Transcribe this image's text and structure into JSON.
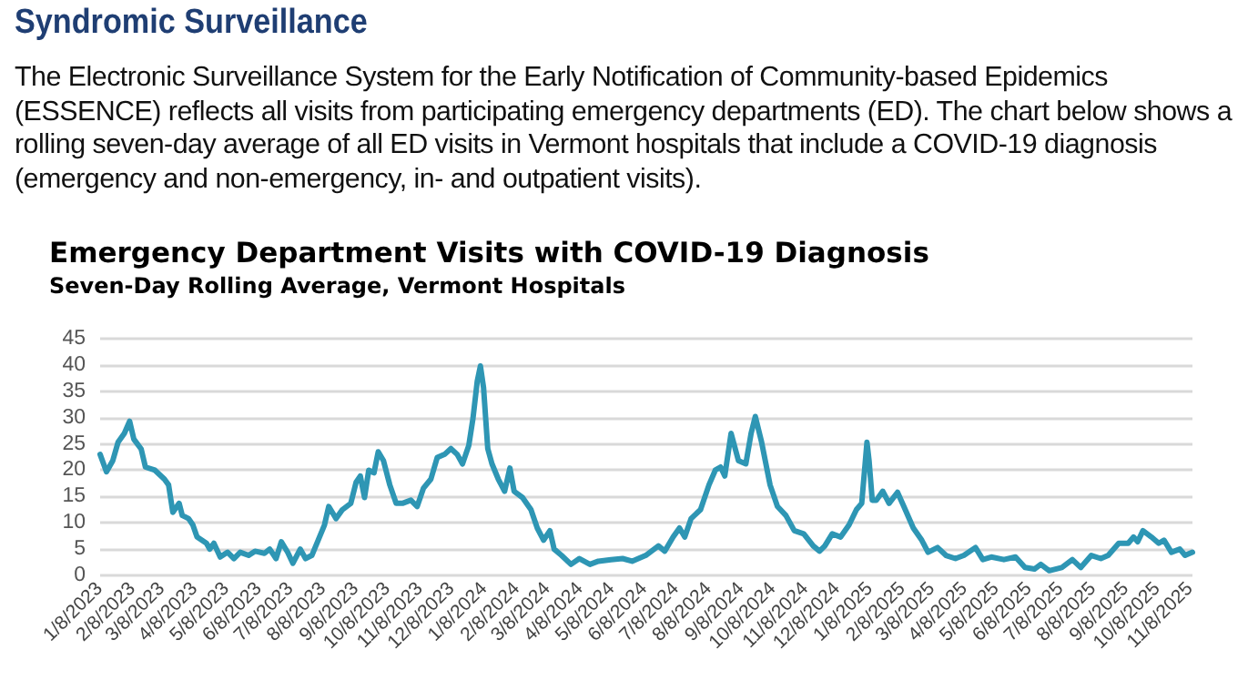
{
  "chart_data": {
    "type": "line",
    "title": "Emergency Department Visits with COVID-19 Diagnosis",
    "subtitle": "Seven-Day Rolling Average, Vermont Hospitals",
    "annotations": [
      "Syndromic Surveillance",
      "The Electronic Surveillance System for the Early Notification of Community-based Epidemics (ESSENCE) reflects all visits from participating emergency departments (ED). The chart below shows a rolling seven-day average of all ED visits in Vermont hospitals that include a COVID-19 diagnosis (emergency and non-emergency, in- and outpatient visits)."
    ],
    "x": [
      "2023-01-08",
      "2023-01-14",
      "2023-01-20",
      "2023-01-25",
      "2023-01-31",
      "2023-02-05",
      "2023-02-09",
      "2023-02-16",
      "2023-02-20",
      "2023-03-01",
      "2023-03-10",
      "2023-03-14",
      "2023-03-18",
      "2023-03-24",
      "2023-03-27",
      "2023-04-02",
      "2023-04-06",
      "2023-04-10",
      "2023-04-19",
      "2023-04-22",
      "2023-04-26",
      "2023-05-02",
      "2023-05-09",
      "2023-05-15",
      "2023-05-21",
      "2023-05-29",
      "2023-06-04",
      "2023-06-13",
      "2023-06-18",
      "2023-06-24",
      "2023-06-29",
      "2023-07-05",
      "2023-07-10",
      "2023-07-17",
      "2023-07-22",
      "2023-07-28",
      "2023-08-03",
      "2023-08-09",
      "2023-08-13",
      "2023-08-20",
      "2023-08-26",
      "2023-09-03",
      "2023-09-08",
      "2023-09-12",
      "2023-09-16",
      "2023-09-20",
      "2023-09-25",
      "2023-09-29",
      "2023-10-04",
      "2023-10-10",
      "2023-10-16",
      "2023-10-22",
      "2023-10-30",
      "2023-11-05",
      "2023-11-11",
      "2023-11-18",
      "2023-11-24",
      "2023-12-01",
      "2023-12-07",
      "2023-12-13",
      "2023-12-18",
      "2023-12-24",
      "2023-12-28",
      "2024-01-01",
      "2024-01-04",
      "2024-01-07",
      "2024-01-11",
      "2024-01-15",
      "2024-01-21",
      "2024-01-27",
      "2024-02-01",
      "2024-02-05",
      "2024-02-13",
      "2024-02-21",
      "2024-02-27",
      "2024-03-04",
      "2024-03-10",
      "2024-03-14",
      "2024-03-21",
      "2024-03-30",
      "2024-04-07",
      "2024-04-17",
      "2024-04-25",
      "2024-05-07",
      "2024-05-18",
      "2024-05-27",
      "2024-06-09",
      "2024-06-21",
      "2024-06-27",
      "2024-07-05",
      "2024-07-11",
      "2024-07-16",
      "2024-07-22",
      "2024-07-31",
      "2024-08-08",
      "2024-08-14",
      "2024-08-19",
      "2024-08-23",
      "2024-08-29",
      "2024-09-05",
      "2024-09-12",
      "2024-09-17",
      "2024-09-21",
      "2024-09-27",
      "2024-10-05",
      "2024-10-12",
      "2024-10-20",
      "2024-10-28",
      "2024-11-06",
      "2024-11-15",
      "2024-11-21",
      "2024-11-26",
      "2024-12-03",
      "2024-12-11",
      "2024-12-19",
      "2024-12-26",
      "2024-12-31",
      "2025-01-05",
      "2025-01-07",
      "2025-01-10",
      "2025-01-14",
      "2025-01-20",
      "2025-01-26",
      "2025-02-03",
      "2025-02-09",
      "2025-02-18",
      "2025-02-26",
      "2025-03-04",
      "2025-03-13",
      "2025-03-21",
      "2025-03-30",
      "2025-04-07",
      "2025-04-18",
      "2025-04-25",
      "2025-05-03",
      "2025-05-15",
      "2025-05-26",
      "2025-06-04",
      "2025-06-13",
      "2025-06-19",
      "2025-06-27",
      "2025-07-09",
      "2025-07-19",
      "2025-07-27",
      "2025-08-06",
      "2025-08-15",
      "2025-08-22",
      "2025-09-01",
      "2025-09-10",
      "2025-09-15",
      "2025-09-19",
      "2025-09-24",
      "2025-10-02",
      "2025-10-09",
      "2025-10-14",
      "2025-10-21",
      "2025-10-29",
      "2025-11-03",
      "2025-11-10"
    ],
    "series": [
      {
        "color": "#2e96b4",
        "values": [
          23,
          19.7,
          21.8,
          25.3,
          27,
          29.3,
          25.9,
          24,
          20.6,
          20,
          18.3,
          17.2,
          12,
          13.7,
          11.4,
          10.8,
          9.6,
          7.3,
          6.1,
          5,
          6.1,
          3.5,
          4.4,
          3.2,
          4.4,
          3.8,
          4.6,
          4.2,
          5,
          3.2,
          6.4,
          4.4,
          2.3,
          5,
          3.2,
          3.8,
          6.7,
          9.6,
          13.1,
          10.8,
          12.5,
          13.7,
          17.7,
          18.9,
          14.8,
          20,
          19.5,
          23.5,
          21.8,
          17.2,
          13.7,
          13.7,
          14.3,
          13.1,
          16.6,
          18.3,
          22.4,
          23,
          24.1,
          23,
          21.2,
          24.7,
          29.9,
          36.9,
          39.8,
          35.7,
          24.1,
          21.2,
          18.3,
          16,
          20.4,
          16,
          14.8,
          12.5,
          9,
          6.7,
          8.5,
          5,
          3.8,
          2.1,
          3.2,
          2.1,
          2.7,
          3,
          3.2,
          2.7,
          3.8,
          5.6,
          4.6,
          7.3,
          9,
          7.3,
          10.8,
          12.5,
          17.2,
          20,
          20.6,
          18.9,
          27,
          21.8,
          21.2,
          27,
          30.2,
          25.3,
          17.2,
          13.1,
          11.4,
          8.5,
          7.9,
          5.6,
          4.6,
          5.6,
          7.9,
          7.3,
          9.6,
          12.5,
          13.7,
          25.3,
          21.8,
          14.3,
          14.3,
          16,
          13.7,
          15.8,
          13.1,
          9,
          6.7,
          4.4,
          5.3,
          3.8,
          3.2,
          3.8,
          5.3,
          3,
          3.5,
          3,
          3.5,
          1.5,
          1.2,
          2.1,
          0.9,
          1.5,
          3,
          1.5,
          3.8,
          3.2,
          3.8,
          6.1,
          6.1,
          7.3,
          6.4,
          8.5,
          7.3,
          6.1,
          6.7,
          4.4,
          5,
          3.8,
          4.4
        ]
      }
    ],
    "xlim": [
      "2023-01-08",
      "2025-11-10"
    ],
    "xticks": [
      {
        "value": "2023-01-08",
        "label": "1/8/2023"
      },
      {
        "value": "2023-02-08",
        "label": "2/8/2023"
      },
      {
        "value": "2023-03-08",
        "label": "3/8/2023"
      },
      {
        "value": "2023-04-08",
        "label": "4/8/2023"
      },
      {
        "value": "2023-05-08",
        "label": "5/8/2023"
      },
      {
        "value": "2023-06-08",
        "label": "6/8/2023"
      },
      {
        "value": "2023-07-08",
        "label": "7/8/2023"
      },
      {
        "value": "2023-08-08",
        "label": "8/8/2023"
      },
      {
        "value": "2023-09-08",
        "label": "9/8/2023"
      },
      {
        "value": "2023-10-08",
        "label": "10/8/2023"
      },
      {
        "value": "2023-11-08",
        "label": "11/8/2023"
      },
      {
        "value": "2023-12-08",
        "label": "12/8/2023"
      },
      {
        "value": "2024-01-08",
        "label": "1/8/2024"
      },
      {
        "value": "2024-02-08",
        "label": "2/8/2024"
      },
      {
        "value": "2024-03-08",
        "label": "3/8/2024"
      },
      {
        "value": "2024-04-08",
        "label": "4/8/2024"
      },
      {
        "value": "2024-05-08",
        "label": "5/8/2024"
      },
      {
        "value": "2024-06-08",
        "label": "6/8/2024"
      },
      {
        "value": "2024-07-08",
        "label": "7/8/2024"
      },
      {
        "value": "2024-08-08",
        "label": "8/8/2024"
      },
      {
        "value": "2024-09-08",
        "label": "9/8/2024"
      },
      {
        "value": "2024-10-08",
        "label": "10/8/2024"
      },
      {
        "value": "2024-11-08",
        "label": "11/8/2024"
      },
      {
        "value": "2024-12-08",
        "label": "12/8/2024"
      },
      {
        "value": "2025-01-08",
        "label": "1/8/2025"
      },
      {
        "value": "2025-02-08",
        "label": "2/8/2025"
      },
      {
        "value": "2025-03-08",
        "label": "3/8/2025"
      },
      {
        "value": "2025-04-08",
        "label": "4/8/2025"
      },
      {
        "value": "2025-05-08",
        "label": "5/8/2025"
      },
      {
        "value": "2025-06-08",
        "label": "6/8/2025"
      },
      {
        "value": "2025-07-08",
        "label": "7/8/2025"
      },
      {
        "value": "2025-08-08",
        "label": "8/8/2025"
      },
      {
        "value": "2025-09-08",
        "label": "9/8/2025"
      },
      {
        "value": "2025-10-08",
        "label": "10/8/2025"
      },
      {
        "value": "2025-11-08",
        "label": "11/8/2025"
      }
    ],
    "ylim": [
      0,
      45
    ],
    "yticks": [
      0,
      5,
      10,
      15,
      20,
      25,
      30,
      35,
      40,
      45
    ],
    "grid": "y",
    "marker": "none",
    "line_style": "solid"
  }
}
